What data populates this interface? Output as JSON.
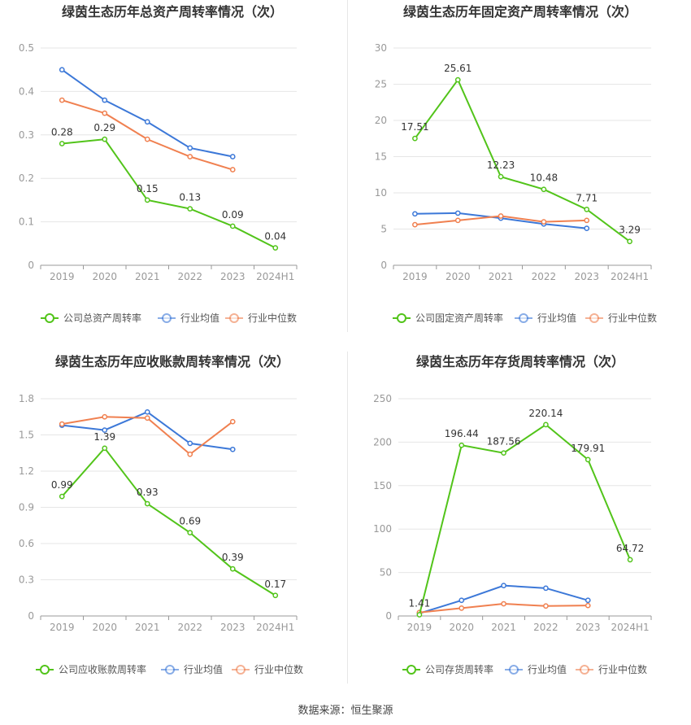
{
  "source": "数据来源：恒生聚源",
  "colors": {
    "company": "#52c41a",
    "avg": "#3c78d8",
    "median": "#f08050",
    "grid": "#e6e6e6",
    "axis": "#999999",
    "tick_text": "#999999",
    "title": "#333333"
  },
  "chart_data": [
    {
      "type": "line",
      "title": "绿茵生态历年总资产周转率情况（次）",
      "categories": [
        "2019",
        "2020",
        "2021",
        "2022",
        "2023",
        "2024H1"
      ],
      "ylim": [
        0,
        0.5
      ],
      "yticks": [
        "0",
        "0.1",
        "0.2",
        "0.3",
        "0.4",
        "0.5"
      ],
      "series": [
        {
          "name": "公司总资产周转率",
          "values": [
            0.28,
            0.29,
            0.15,
            0.13,
            0.09,
            0.04
          ],
          "labels": [
            "0.28",
            "0.29",
            "0.15",
            "0.13",
            "0.09",
            "0.04"
          ]
        },
        {
          "name": "行业均值",
          "values": [
            0.45,
            0.38,
            0.33,
            0.27,
            0.25,
            null
          ]
        },
        {
          "name": "行业中位数",
          "values": [
            0.38,
            0.35,
            0.29,
            0.25,
            0.22,
            null
          ]
        }
      ]
    },
    {
      "type": "line",
      "title": "绿茵生态历年固定资产周转率情况（次）",
      "categories": [
        "2019",
        "2020",
        "2021",
        "2022",
        "2023",
        "2024H1"
      ],
      "ylim": [
        0,
        30
      ],
      "yticks": [
        "0",
        "5",
        "10",
        "15",
        "20",
        "25",
        "30"
      ],
      "series": [
        {
          "name": "公司固定资产周转率",
          "values": [
            17.51,
            25.61,
            12.23,
            10.48,
            7.71,
            3.29
          ],
          "labels": [
            "17.51",
            "25.61",
            "12.23",
            "10.48",
            "7.71",
            "3.29"
          ]
        },
        {
          "name": "行业均值",
          "values": [
            7.1,
            7.2,
            6.5,
            5.7,
            5.1,
            null
          ]
        },
        {
          "name": "行业中位数",
          "values": [
            5.6,
            6.2,
            6.8,
            6.0,
            6.2,
            null
          ]
        }
      ]
    },
    {
      "type": "line",
      "title": "绿茵生态历年应收账款周转率情况（次）",
      "categories": [
        "2019",
        "2020",
        "2021",
        "2022",
        "2023",
        "2024H1"
      ],
      "ylim": [
        0,
        1.8
      ],
      "yticks": [
        "0",
        "0.3",
        "0.6",
        "0.9",
        "1.2",
        "1.5",
        "1.8"
      ],
      "series": [
        {
          "name": "公司应收账款周转率",
          "values": [
            0.99,
            1.39,
            0.93,
            0.69,
            0.39,
            0.17
          ],
          "labels": [
            "0.99",
            "1.39",
            "0.93",
            "0.69",
            "0.39",
            "0.17"
          ]
        },
        {
          "name": "行业均值",
          "values": [
            1.58,
            1.54,
            1.69,
            1.43,
            1.38,
            null
          ]
        },
        {
          "name": "行业中位数",
          "values": [
            1.59,
            1.65,
            1.64,
            1.34,
            1.61,
            null
          ]
        }
      ]
    },
    {
      "type": "line",
      "title": "绿茵生态历年存货周转率情况（次）",
      "categories": [
        "2019",
        "2020",
        "2021",
        "2022",
        "2023",
        "2024H1"
      ],
      "ylim": [
        0,
        250
      ],
      "yticks": [
        "0",
        "50",
        "100",
        "150",
        "200",
        "250"
      ],
      "series": [
        {
          "name": "公司存货周转率",
          "values": [
            1.41,
            196.44,
            187.56,
            220.14,
            179.91,
            64.72
          ],
          "labels": [
            "1.41",
            "196.44",
            "187.56",
            "220.14",
            "179.91",
            "64.72"
          ]
        },
        {
          "name": "行业均值",
          "values": [
            3,
            18,
            35,
            32,
            18,
            null
          ]
        },
        {
          "name": "行业中位数",
          "values": [
            4,
            9,
            14,
            11.5,
            12,
            null
          ]
        }
      ]
    }
  ]
}
